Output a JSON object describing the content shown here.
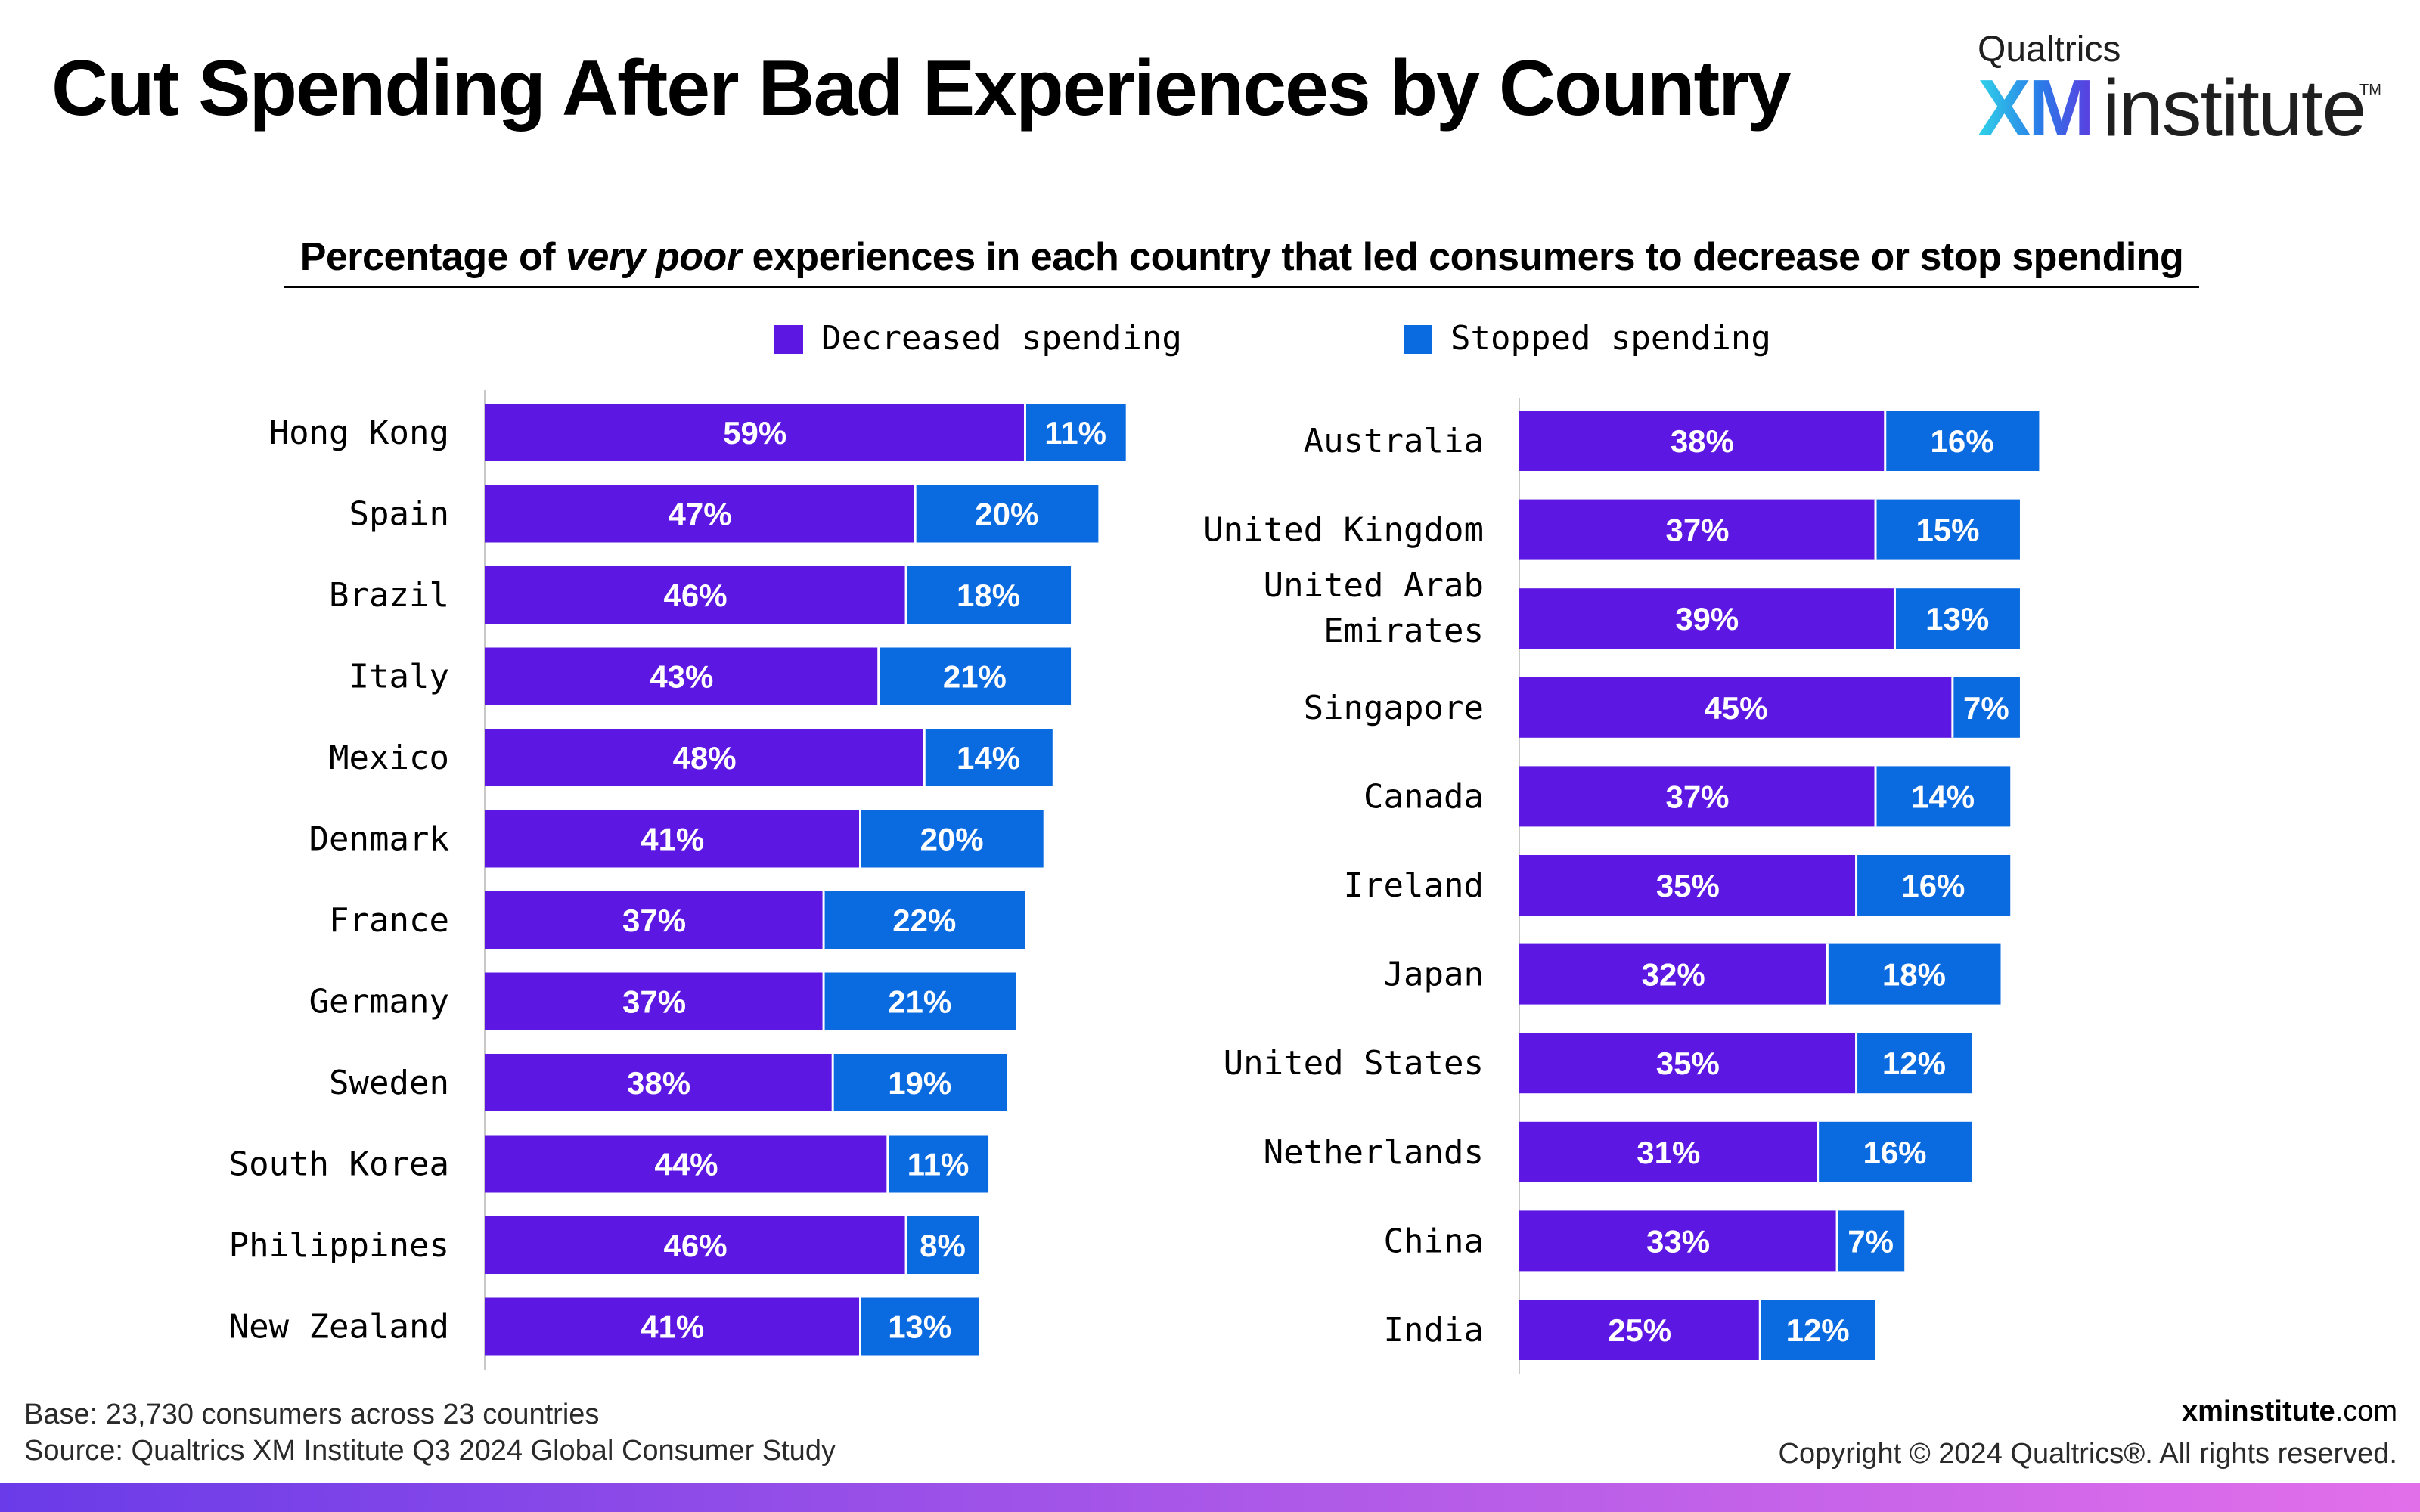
{
  "header": {
    "title": "Cut Spending After Bad Experiences by Country",
    "logo_top": "Qualtrics",
    "logo_xm": "XM",
    "logo_institute": "institute",
    "logo_tm": "TM"
  },
  "chart_data": {
    "type": "bar",
    "stacked": true,
    "orientation": "horizontal",
    "title": "Percentage of very poor experiences in each country that led consumers to decrease or stop spending",
    "title_parts": {
      "before": "Percentage of ",
      "emphasis": "very poor",
      "after": " experiences in each country that led consumers to decrease or stop spending"
    },
    "legend": {
      "placement": "top",
      "entries": [
        "Decreased spending",
        "Stopped spending"
      ]
    },
    "colors": {
      "decreased": "#5d17e3",
      "stopped": "#0a6ae0"
    },
    "grid": false,
    "panels": [
      {
        "categories": [
          "Hong Kong",
          "Spain",
          "Brazil",
          "Italy",
          "Mexico",
          "Denmark",
          "France",
          "Germany",
          "Sweden",
          "South Korea",
          "Philippines",
          "New Zealand"
        ],
        "series": [
          {
            "name": "Decreased spending",
            "values": [
              59,
              47,
              46,
              43,
              48,
              41,
              37,
              37,
              38,
              44,
              46,
              41
            ],
            "labels": [
              "59%",
              "47%",
              "46%",
              "43%",
              "48%",
              "41%",
              "37%",
              "37%",
              "38%",
              "44%",
              "46%",
              "41%"
            ]
          },
          {
            "name": "Stopped spending",
            "values": [
              11,
              20,
              18,
              21,
              14,
              20,
              22,
              21,
              19,
              11,
              8,
              13
            ],
            "labels": [
              "11%",
              "20%",
              "18%",
              "21%",
              "14%",
              "20%",
              "22%",
              "21%",
              "19%",
              "11%",
              "8%",
              "13%"
            ]
          }
        ]
      },
      {
        "categories": [
          "Australia",
          "United Kingdom",
          "United Arab Emirates",
          "Singapore",
          "Canada",
          "Ireland",
          "Japan",
          "United States",
          "Netherlands",
          "China",
          "India"
        ],
        "series": [
          {
            "name": "Decreased spending",
            "values": [
              38,
              37,
              39,
              45,
              37,
              35,
              32,
              35,
              31,
              33,
              25
            ],
            "labels": [
              "38%",
              "37%",
              "39%",
              "45%",
              "37%",
              "35%",
              "32%",
              "35%",
              "31%",
              "33%",
              "25%"
            ]
          },
          {
            "name": "Stopped spending",
            "values": [
              16,
              15,
              13,
              7,
              14,
              16,
              18,
              12,
              16,
              7,
              12
            ],
            "labels": [
              "16%",
              "15%",
              "13%",
              "7%",
              "14%",
              "16%",
              "18%",
              "12%",
              "16%",
              "7%",
              "12%"
            ]
          }
        ]
      }
    ]
  },
  "footer": {
    "base_label": "Base:",
    "base_text": " 23,730 consumers across 23 countries",
    "source_label": "Source:",
    "source_text": " Qualtrics XM Institute Q3 2024 Global Consumer Study",
    "site_bold": "xminstitute",
    "site_suffix": ".com",
    "copyright": "Copyright © 2024 Qualtrics®. All rights reserved."
  }
}
